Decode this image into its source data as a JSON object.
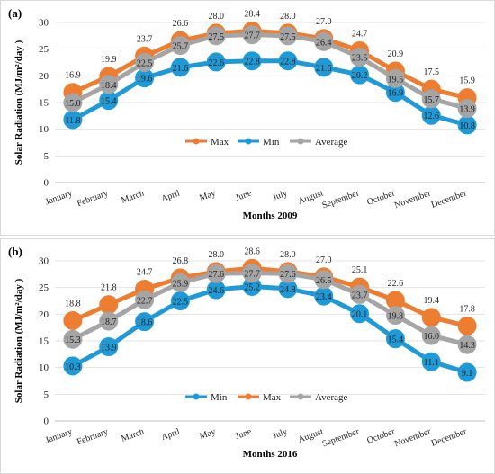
{
  "chart_data": [
    {
      "type": "line",
      "panel_label": "(a)",
      "categories": [
        "January",
        "February",
        "March",
        "April",
        "May",
        "June",
        "July",
        "August",
        "September",
        "October",
        "November",
        "December"
      ],
      "series": [
        {
          "name": "Max",
          "color": "#ed7d31",
          "values": [
            16.9,
            19.9,
            23.7,
            26.6,
            28.0,
            28.4,
            28.0,
            27.0,
            24.7,
            20.9,
            17.5,
            15.9
          ]
        },
        {
          "name": "Min",
          "color": "#1f9ad6",
          "values": [
            11.8,
            15.4,
            19.6,
            21.6,
            22.6,
            22.8,
            22.8,
            21.6,
            20.2,
            16.9,
            12.6,
            10.8
          ]
        },
        {
          "name": "Average",
          "color": "#a5a5a5",
          "values": [
            15.0,
            18.4,
            22.5,
            25.7,
            27.5,
            27.7,
            27.5,
            26.4,
            23.5,
            19.5,
            15.7,
            13.9
          ]
        }
      ],
      "legend_order": [
        "Max",
        "Min",
        "Average"
      ],
      "legend_position": "center",
      "xlabel": "Months 2009",
      "ylabel": "Solar Radiation (MJ/m²/day )",
      "ylim": [
        0,
        30
      ],
      "yticks": [
        0,
        5,
        10,
        15,
        20,
        25,
        30
      ],
      "grid": true
    },
    {
      "type": "line",
      "panel_label": "(b)",
      "categories": [
        "January",
        "February",
        "March",
        "April",
        "May",
        "June",
        "July",
        "August",
        "September",
        "October",
        "November",
        "December"
      ],
      "series": [
        {
          "name": "Min",
          "color": "#1f9ad6",
          "values": [
            10.3,
            13.9,
            18.6,
            22.5,
            24.6,
            25.2,
            24.8,
            23.4,
            20.1,
            15.4,
            11.1,
            9.1
          ]
        },
        {
          "name": "Max",
          "color": "#ed7d31",
          "values": [
            18.8,
            21.8,
            24.7,
            26.8,
            28.0,
            28.6,
            28.0,
            27.0,
            25.1,
            22.6,
            19.4,
            17.8
          ]
        },
        {
          "name": "Average",
          "color": "#a5a5a5",
          "values": [
            15.3,
            18.7,
            22.7,
            25.9,
            27.6,
            27.7,
            27.6,
            26.5,
            23.7,
            19.8,
            16.0,
            14.3
          ]
        }
      ],
      "legend_order": [
        "Min",
        "Max",
        "Average"
      ],
      "legend_position": "bottom-center",
      "xlabel": "Months 2016",
      "ylabel": "Solar Radiation (MJ/m²/day )",
      "ylim": [
        0,
        30
      ],
      "yticks": [
        0,
        5,
        10,
        15,
        20,
        25,
        30
      ],
      "grid": true
    }
  ]
}
